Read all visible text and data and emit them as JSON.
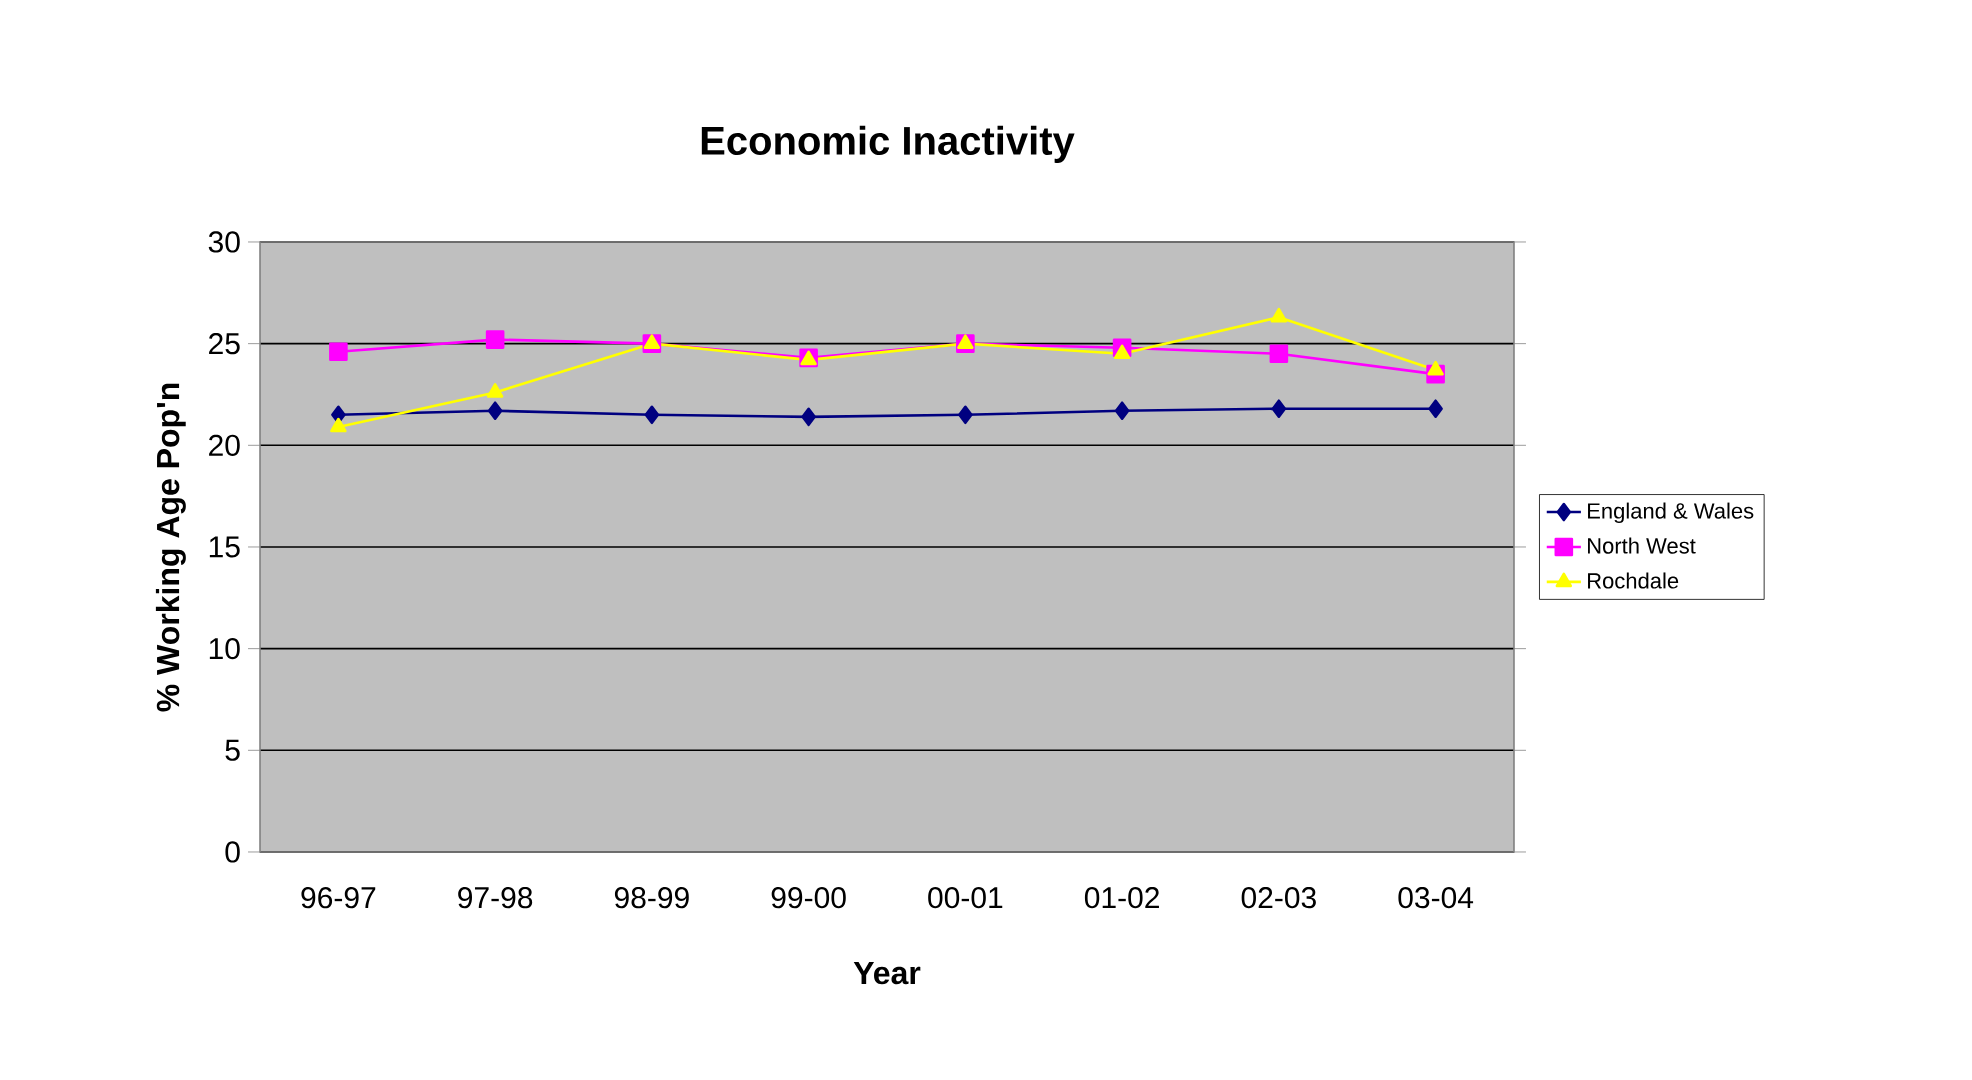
{
  "chart_data": {
    "type": "line",
    "title": "Economic Inactivity",
    "xlabel": "Year",
    "ylabel": "% Working Age Pop'n",
    "categories": [
      "96-97",
      "97-98",
      "98-99",
      "99-00",
      "00-01",
      "01-02",
      "02-03",
      "03-04"
    ],
    "series": [
      {
        "name": "England & Wales",
        "color": "#000080",
        "marker": "diamond",
        "values": [
          21.5,
          21.7,
          21.5,
          21.4,
          21.5,
          21.7,
          21.8,
          21.8
        ]
      },
      {
        "name": "North West",
        "color": "#ff00ff",
        "marker": "square",
        "values": [
          24.6,
          25.2,
          25.0,
          24.3,
          25.0,
          24.8,
          24.5,
          23.5
        ]
      },
      {
        "name": "Rochdale",
        "color": "#ffff00",
        "marker": "triangle",
        "values": [
          20.9,
          22.6,
          25.0,
          24.2,
          25.0,
          24.5,
          26.3,
          23.7
        ]
      }
    ],
    "ylim": [
      0,
      30
    ],
    "yticks": [
      0,
      5,
      10,
      15,
      20,
      25,
      30
    ],
    "grid": "y",
    "legend": "right",
    "line_style": "solid"
  }
}
